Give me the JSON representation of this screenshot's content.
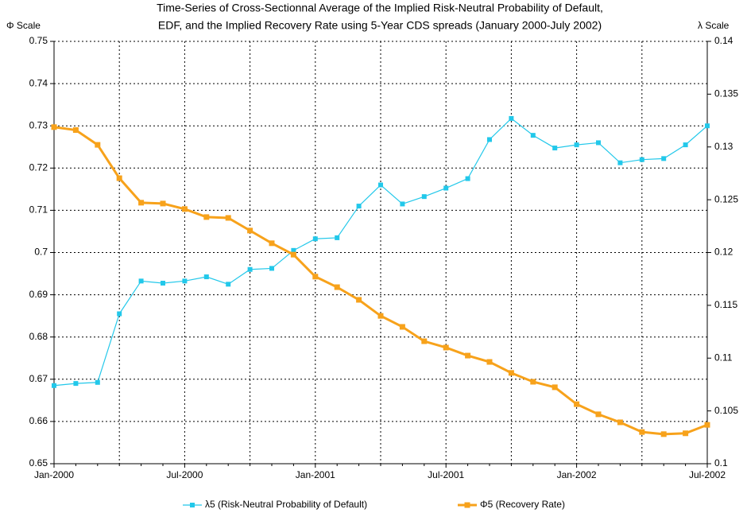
{
  "chart_data": {
    "type": "line",
    "title": [
      "Time-Series of Cross-Sectionnal Average of the Implied Risk-Neutral Probability of Default,",
      "EDF, and the Implied Recovery Rate using 5-Year CDS spreads (January 2000-July 2002)"
    ],
    "y_label": "Φ Scale",
    "y2_label": "λ Scale",
    "categories": [
      "Jan-2000",
      null,
      null,
      null,
      null,
      null,
      "Jul-2000",
      null,
      null,
      null,
      null,
      null,
      "Jan-2001",
      null,
      null,
      null,
      null,
      null,
      "Jul-2001",
      null,
      null,
      null,
      null,
      null,
      "Jan-2002",
      null,
      null,
      null,
      null,
      null,
      "Jul-2002"
    ],
    "ylim": [
      0.65,
      0.75
    ],
    "yticks": [
      0.65,
      0.66,
      0.67,
      0.68,
      0.69,
      0.7,
      0.71,
      0.72,
      0.73,
      0.74,
      0.75
    ],
    "y2lim": [
      0.1,
      0.14
    ],
    "y2ticks": [
      0.1,
      0.105,
      0.11,
      0.115,
      0.12,
      0.125,
      0.13,
      0.135,
      0.14
    ],
    "grid": true,
    "series": [
      {
        "name": "λ5 (Risk-Neutral Probability of Default)",
        "color": "#22c8ea",
        "axis": "y2",
        "values": [
          0.1074,
          0.1076,
          0.1077,
          0.1142,
          0.1173,
          0.1171,
          0.1173,
          0.1177,
          0.117,
          0.1184,
          0.1185,
          0.1202,
          0.1213,
          0.1214,
          0.1244,
          0.1264,
          0.1246,
          0.1253,
          0.1261,
          0.127,
          0.1307,
          0.1327,
          0.1311,
          0.1299,
          0.1302,
          0.1304,
          0.1285,
          0.1288,
          0.1289,
          0.1302,
          0.132
        ]
      },
      {
        "name": "Φ5 (Recovery Rate)",
        "color": "#f7a21b",
        "values": [
          0.7297,
          0.729,
          0.7255,
          0.7176,
          0.7118,
          0.7116,
          0.7103,
          0.7084,
          0.7082,
          0.7052,
          0.7022,
          0.6995,
          0.6943,
          0.6918,
          0.6888,
          0.685,
          0.6824,
          0.679,
          0.6775,
          0.6756,
          0.6741,
          0.6715,
          0.6694,
          0.6681,
          0.6641,
          0.6617,
          0.6598,
          0.6575,
          0.657,
          0.6572,
          0.6592
        ]
      }
    ]
  }
}
